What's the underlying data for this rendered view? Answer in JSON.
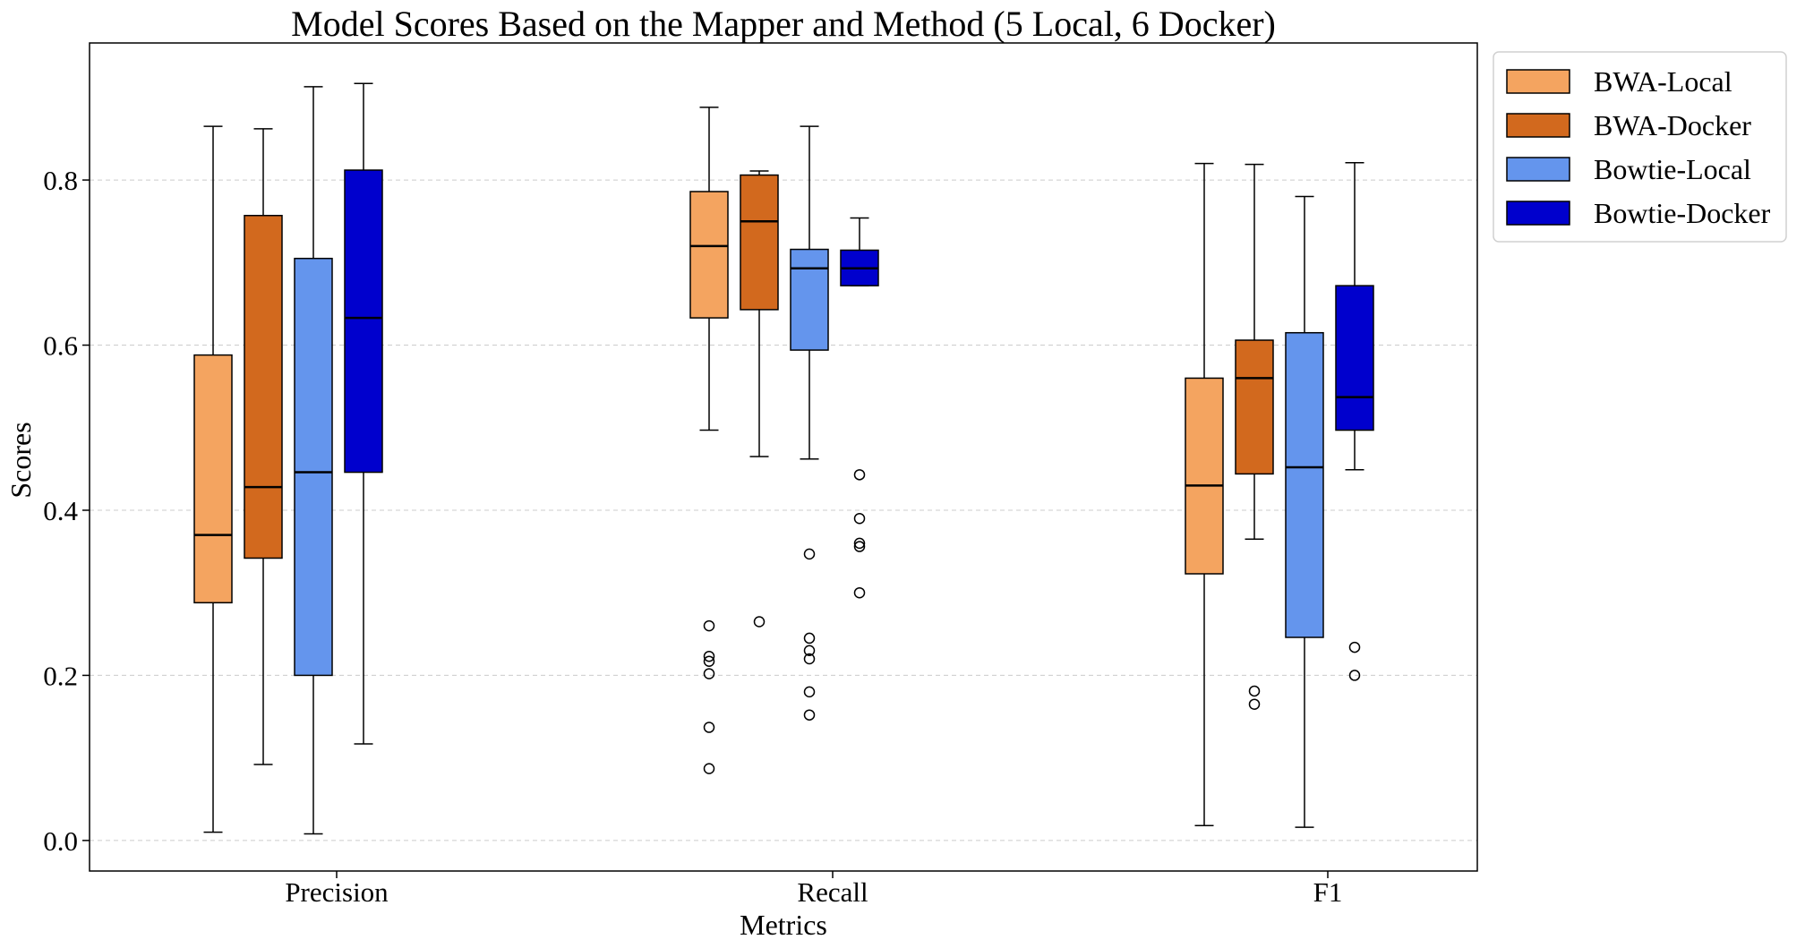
{
  "chart_data": {
    "type": "boxplot",
    "title": "Model Scores Based on the Mapper and Method (5 Local, 6 Docker)",
    "xlabel": "Metrics",
    "ylabel": "Scores",
    "categories": [
      "Precision",
      "Recall",
      "F1"
    ],
    "ylim": [
      -0.037,
      0.966
    ],
    "yticks": [
      0.0,
      0.2,
      0.4,
      0.6,
      0.8
    ],
    "ytick_labels": [
      "0.0",
      "0.2",
      "0.4",
      "0.6",
      "0.8"
    ],
    "grid": "horizontal-dashed",
    "legend_position": "outside-top-right",
    "series": [
      {
        "name": "BWA-Local",
        "color": "#F4A460",
        "boxes": [
          {
            "whisker_low": 0.01,
            "q1": 0.288,
            "median": 0.37,
            "q3": 0.588,
            "whisker_high": 0.865,
            "outliers": []
          },
          {
            "whisker_low": 0.497,
            "q1": 0.633,
            "median": 0.72,
            "q3": 0.786,
            "whisker_high": 0.888,
            "outliers": [
              0.26,
              0.223,
              0.217,
              0.202,
              0.137,
              0.087
            ]
          },
          {
            "whisker_low": 0.018,
            "q1": 0.323,
            "median": 0.43,
            "q3": 0.56,
            "whisker_high": 0.82,
            "outliers": []
          }
        ]
      },
      {
        "name": "BWA-Docker",
        "color": "#D2691E",
        "boxes": [
          {
            "whisker_low": 0.092,
            "q1": 0.342,
            "median": 0.428,
            "q3": 0.757,
            "whisker_high": 0.862,
            "outliers": []
          },
          {
            "whisker_low": 0.465,
            "q1": 0.643,
            "median": 0.75,
            "q3": 0.806,
            "whisker_high": 0.811,
            "outliers": [
              0.265
            ]
          },
          {
            "whisker_low": 0.365,
            "q1": 0.444,
            "median": 0.56,
            "q3": 0.606,
            "whisker_high": 0.819,
            "outliers": [
              0.181,
              0.165
            ]
          }
        ]
      },
      {
        "name": "Bowtie-Local",
        "color": "#6495ED",
        "boxes": [
          {
            "whisker_low": 0.008,
            "q1": 0.2,
            "median": 0.446,
            "q3": 0.705,
            "whisker_high": 0.913,
            "outliers": []
          },
          {
            "whisker_low": 0.462,
            "q1": 0.594,
            "median": 0.693,
            "q3": 0.716,
            "whisker_high": 0.865,
            "outliers": [
              0.347,
              0.245,
              0.23,
              0.22,
              0.18,
              0.152
            ]
          },
          {
            "whisker_low": 0.016,
            "q1": 0.246,
            "median": 0.452,
            "q3": 0.615,
            "whisker_high": 0.78,
            "outliers": []
          }
        ]
      },
      {
        "name": "Bowtie-Docker",
        "color": "#0000CD",
        "boxes": [
          {
            "whisker_low": 0.117,
            "q1": 0.446,
            "median": 0.633,
            "q3": 0.812,
            "whisker_high": 0.917,
            "outliers": []
          },
          {
            "whisker_low": 0.672,
            "q1": 0.672,
            "median": 0.693,
            "q3": 0.715,
            "whisker_high": 0.754,
            "outliers": [
              0.443,
              0.39,
              0.36,
              0.356,
              0.3
            ]
          },
          {
            "whisker_low": 0.449,
            "q1": 0.497,
            "median": 0.537,
            "q3": 0.672,
            "whisker_high": 0.821,
            "outliers": [
              0.234,
              0.2
            ]
          }
        ]
      }
    ]
  }
}
